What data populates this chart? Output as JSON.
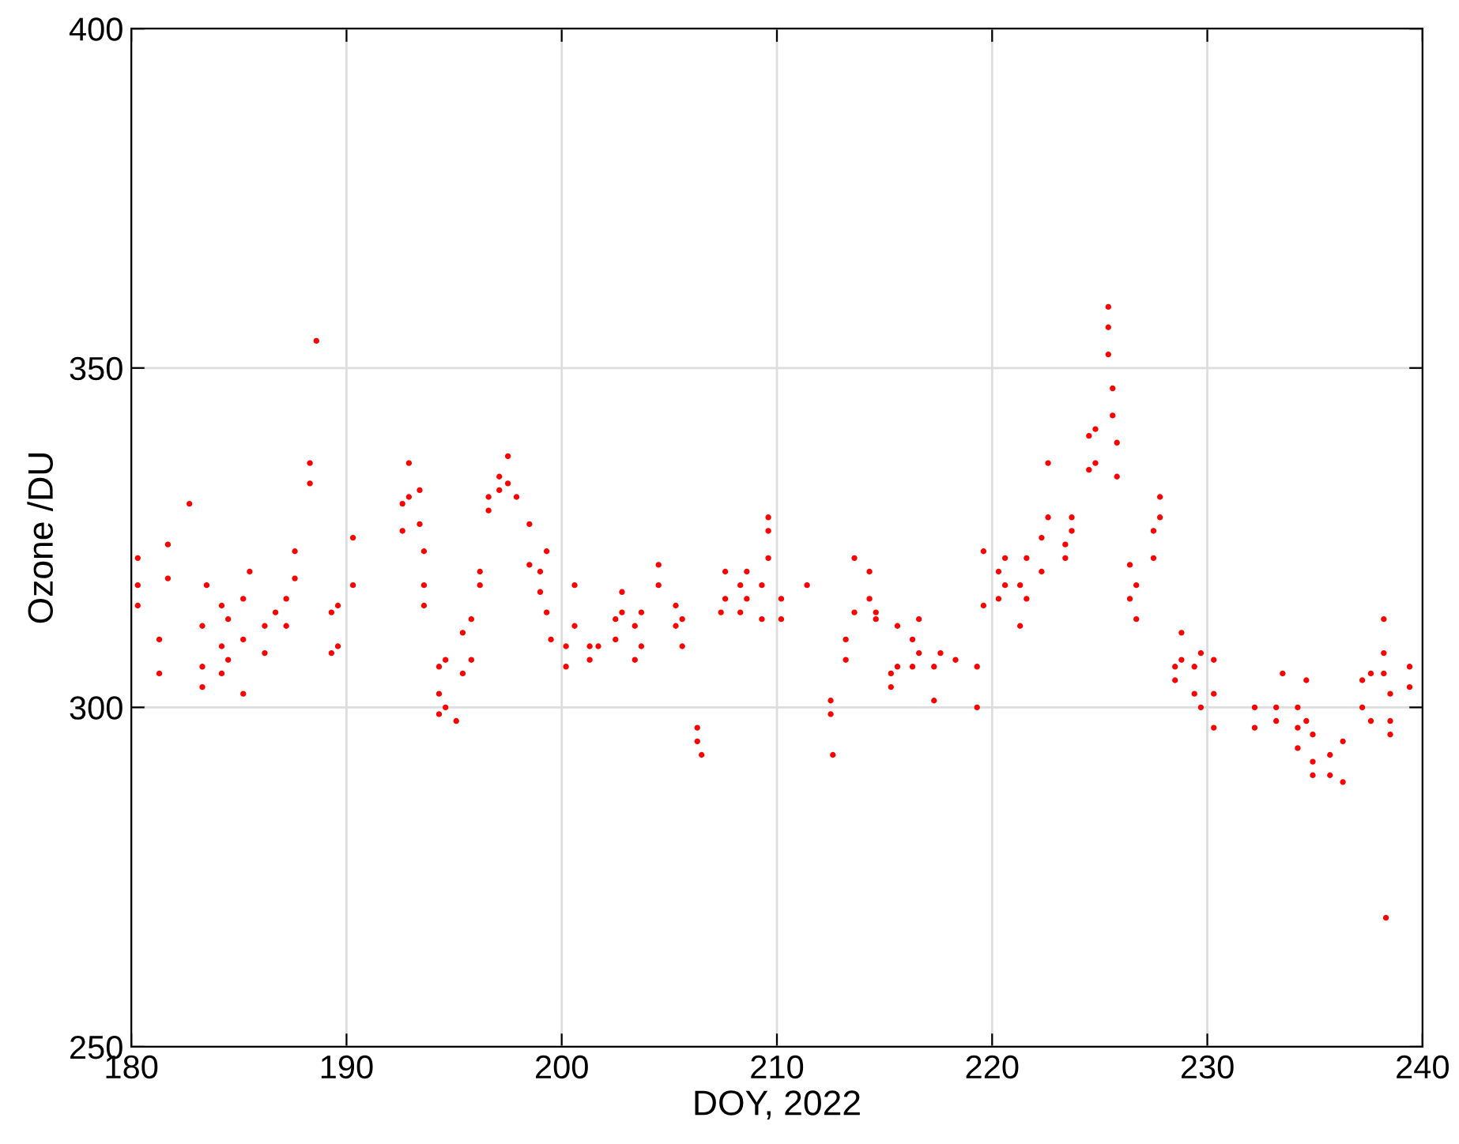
{
  "chart_data": {
    "type": "scatter",
    "xlabel": "DOY, 2022",
    "ylabel": "Ozone /DU",
    "xlim": [
      180,
      240
    ],
    "xticks": [
      180,
      190,
      200,
      210,
      220,
      230,
      240
    ],
    "ylim": [
      250,
      400
    ],
    "yticks": [
      250,
      300,
      350,
      400
    ],
    "grid": true,
    "marker": "circle",
    "series": [
      {
        "color": "#ff0000",
        "x": [
          180.3,
          180.3,
          180.3,
          181.3,
          181.3,
          181.7,
          181.7,
          182.7,
          183.3,
          183.3,
          183.3,
          183.5,
          184.2,
          184.2,
          184.2,
          184.5,
          184.5,
          185.2,
          185.2,
          185.2,
          185.5,
          186.2,
          186.2,
          186.7,
          187.2,
          187.2,
          187.6,
          187.6,
          188.3,
          188.3,
          188.6,
          189.3,
          189.3,
          189.6,
          189.6,
          190.3,
          190.3,
          192.6,
          192.6,
          192.9,
          192.9,
          193.4,
          193.4,
          193.6,
          193.6,
          193.6,
          194.3,
          194.3,
          194.3,
          194.6,
          194.6,
          195.1,
          195.4,
          195.4,
          195.8,
          195.8,
          196.2,
          196.2,
          196.6,
          196.6,
          197.1,
          197.1,
          197.5,
          197.5,
          197.9,
          198.5,
          198.5,
          199.0,
          199.0,
          199.3,
          199.3,
          199.5,
          200.2,
          200.2,
          200.6,
          200.6,
          201.3,
          201.3,
          201.7,
          202.5,
          202.5,
          202.8,
          202.8,
          203.4,
          203.4,
          203.7,
          203.7,
          204.5,
          204.5,
          205.3,
          205.3,
          205.6,
          205.6,
          206.3,
          206.3,
          206.5,
          207.4,
          207.6,
          207.6,
          208.3,
          208.3,
          208.6,
          208.6,
          209.3,
          209.3,
          209.6,
          209.6,
          209.6,
          210.2,
          210.2,
          211.4,
          212.5,
          212.5,
          212.6,
          213.2,
          213.2,
          213.6,
          213.6,
          214.3,
          214.3,
          214.6,
          214.6,
          215.3,
          215.3,
          215.6,
          215.6,
          216.3,
          216.3,
          216.6,
          216.6,
          217.3,
          217.3,
          217.6,
          218.3,
          219.3,
          219.3,
          219.6,
          219.6,
          220.3,
          220.3,
          220.6,
          220.6,
          221.3,
          221.3,
          221.6,
          221.6,
          222.3,
          222.3,
          222.6,
          222.6,
          223.4,
          223.4,
          223.7,
          223.7,
          224.5,
          224.5,
          224.8,
          224.8,
          225.4,
          225.4,
          225.4,
          225.6,
          225.6,
          225.8,
          225.8,
          226.4,
          226.4,
          226.7,
          226.7,
          227.5,
          227.5,
          227.8,
          227.8,
          228.5,
          228.5,
          228.8,
          228.8,
          229.4,
          229.4,
          229.7,
          229.7,
          230.3,
          230.3,
          230.3,
          232.2,
          232.2,
          233.2,
          233.2,
          233.5,
          234.2,
          234.2,
          234.2,
          234.6,
          234.6,
          234.9,
          234.9,
          234.9,
          235.7,
          235.7,
          236.3,
          236.3,
          237.2,
          237.2,
          237.6,
          237.6,
          238.2,
          238.2,
          238.2,
          238.3,
          238.5,
          238.5,
          238.5,
          239.4,
          239.4
        ],
        "values": [
          322,
          318,
          315,
          310,
          305,
          324,
          319,
          330,
          312,
          306,
          303,
          318,
          315,
          309,
          305,
          313,
          307,
          316,
          310,
          302,
          320,
          312,
          308,
          314,
          316,
          312,
          323,
          319,
          336,
          333,
          354,
          314,
          308,
          315,
          309,
          325,
          318,
          330,
          326,
          336,
          331,
          332,
          327,
          323,
          318,
          315,
          306,
          302,
          299,
          307,
          300,
          298,
          311,
          305,
          313,
          307,
          320,
          318,
          331,
          329,
          334,
          332,
          337,
          333,
          331,
          327,
          321,
          320,
          317,
          323,
          314,
          310,
          309,
          306,
          318,
          312,
          309,
          307,
          309,
          313,
          310,
          317,
          314,
          312,
          307,
          314,
          309,
          321,
          318,
          315,
          312,
          313,
          309,
          297,
          295,
          293,
          314,
          320,
          316,
          318,
          314,
          320,
          316,
          318,
          313,
          326,
          328,
          322,
          316,
          313,
          318,
          301,
          299,
          293,
          310,
          307,
          322,
          314,
          320,
          316,
          314,
          313,
          305,
          303,
          312,
          306,
          310,
          306,
          313,
          308,
          306,
          301,
          308,
          307,
          306,
          300,
          323,
          315,
          320,
          316,
          322,
          318,
          318,
          312,
          322,
          316,
          325,
          320,
          336,
          328,
          324,
          322,
          328,
          326,
          340,
          335,
          341,
          336,
          359,
          356,
          352,
          347,
          343,
          339,
          334,
          321,
          316,
          318,
          313,
          326,
          322,
          331,
          328,
          306,
          304,
          311,
          307,
          306,
          302,
          308,
          300,
          307,
          302,
          297,
          300,
          297,
          300,
          298,
          305,
          300,
          297,
          294,
          304,
          298,
          296,
          292,
          290,
          293,
          290,
          295,
          289,
          304,
          300,
          305,
          298,
          313,
          308,
          305,
          269,
          302,
          298,
          296,
          306,
          303
        ]
      }
    ]
  }
}
